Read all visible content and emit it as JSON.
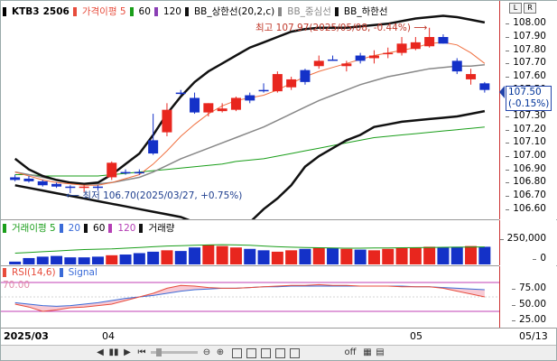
{
  "instrument": {
    "code": "KTB3",
    "period": "2506"
  },
  "legends": {
    "price": [
      {
        "label": "가격이평 5",
        "color": "#e74c3c"
      },
      {
        "label": "60",
        "color": "#1a9e1a"
      },
      {
        "label": "120",
        "color": "#8a3fb5"
      },
      {
        "label": "BB_상한선(20,2,c)",
        "color": "#111111"
      },
      {
        "label": "BB_중심선",
        "color": "#888888"
      },
      {
        "label": "BB_하한선",
        "color": "#111111"
      }
    ],
    "volume": [
      {
        "label": "거래이평 5",
        "color": "#1a9e1a"
      },
      {
        "label": "20",
        "color": "#3a6bd8"
      },
      {
        "label": "60",
        "color": "#111111"
      },
      {
        "label": "120",
        "color": "#b53fb5"
      },
      {
        "label": "거래량",
        "color": "#111111"
      }
    ],
    "rsi": [
      {
        "label": "RSI(14,6)",
        "color": "#e74c3c"
      },
      {
        "label": "Signal",
        "color": "#3a6bd8"
      }
    ]
  },
  "annotations": {
    "high": "최고 107.97(2025/05/08, -0.44%)",
    "low": "최저 106.70(2025/03/27, +0.75%)"
  },
  "axis_labels": {
    "price": [
      "108.00",
      "107.90",
      "107.80",
      "107.70",
      "107.60",
      "107.50",
      "107.40",
      "107.30",
      "107.20",
      "107.10",
      "107.00",
      "106.90",
      "106.80",
      "106.70",
      "106.60"
    ],
    "volume": [
      "250,000",
      "0"
    ],
    "rsi": [
      "75.00",
      "50.00",
      "25.00"
    ]
  },
  "current_price": {
    "value": "107.50",
    "change": "(-0.15%)"
  },
  "rsi_level": "70.00",
  "x_axis": {
    "start": "2025/03",
    "m1": "04",
    "m2": "05",
    "end": "05/13"
  },
  "corner_buttons": [
    "L",
    "R"
  ],
  "toolbar": {
    "nav": [
      "◀",
      "▮▮",
      "▶",
      "⏮"
    ],
    "zoom": [
      "⊖",
      "⊕"
    ],
    "right": [
      "off",
      "▦",
      "▤"
    ]
  },
  "chart_data": {
    "type": "candlestick",
    "candles": [
      {
        "o": 106.84,
        "h": 106.86,
        "l": 106.81,
        "c": 106.82,
        "up": false
      },
      {
        "o": 106.83,
        "h": 106.85,
        "l": 106.8,
        "c": 106.81,
        "up": false
      },
      {
        "o": 106.81,
        "h": 106.82,
        "l": 106.77,
        "c": 106.78,
        "up": false
      },
      {
        "o": 106.79,
        "h": 106.8,
        "l": 106.76,
        "c": 106.77,
        "up": false
      },
      {
        "o": 106.77,
        "h": 106.78,
        "l": 106.72,
        "c": 106.76,
        "up": false
      },
      {
        "o": 106.76,
        "h": 106.78,
        "l": 106.73,
        "c": 106.77,
        "up": true
      },
      {
        "o": 106.77,
        "h": 106.78,
        "l": 106.74,
        "c": 106.76,
        "up": false
      },
      {
        "o": 106.84,
        "h": 106.96,
        "l": 106.82,
        "c": 106.95,
        "up": true
      },
      {
        "o": 106.88,
        "h": 106.9,
        "l": 106.86,
        "c": 106.88,
        "up": false
      },
      {
        "o": 106.88,
        "h": 106.9,
        "l": 106.86,
        "c": 106.87,
        "up": false
      },
      {
        "o": 107.02,
        "h": 107.32,
        "l": 107.01,
        "c": 107.12,
        "up": false
      },
      {
        "o": 107.18,
        "h": 107.4,
        "l": 107.15,
        "c": 107.35,
        "up": true
      },
      {
        "o": 107.48,
        "h": 107.5,
        "l": 107.46,
        "c": 107.48,
        "up": false
      },
      {
        "o": 107.33,
        "h": 107.48,
        "l": 107.32,
        "c": 107.44,
        "up": false
      },
      {
        "o": 107.33,
        "h": 107.4,
        "l": 107.3,
        "c": 107.4,
        "up": true
      },
      {
        "o": 107.34,
        "h": 107.4,
        "l": 107.33,
        "c": 107.36,
        "up": true
      },
      {
        "o": 107.35,
        "h": 107.45,
        "l": 107.34,
        "c": 107.44,
        "up": true
      },
      {
        "o": 107.42,
        "h": 107.48,
        "l": 107.4,
        "c": 107.46,
        "up": false
      },
      {
        "o": 107.5,
        "h": 107.55,
        "l": 107.48,
        "c": 107.5,
        "up": false
      },
      {
        "o": 107.49,
        "h": 107.64,
        "l": 107.48,
        "c": 107.62,
        "up": true
      },
      {
        "o": 107.52,
        "h": 107.6,
        "l": 107.5,
        "c": 107.58,
        "up": true
      },
      {
        "o": 107.56,
        "h": 107.66,
        "l": 107.54,
        "c": 107.65,
        "up": false
      },
      {
        "o": 107.68,
        "h": 107.76,
        "l": 107.66,
        "c": 107.72,
        "up": true
      },
      {
        "o": 107.73,
        "h": 107.76,
        "l": 107.72,
        "c": 107.73,
        "up": false
      },
      {
        "o": 107.68,
        "h": 107.72,
        "l": 107.64,
        "c": 107.7,
        "up": true
      },
      {
        "o": 107.72,
        "h": 107.78,
        "l": 107.7,
        "c": 107.76,
        "up": false
      },
      {
        "o": 107.74,
        "h": 107.8,
        "l": 107.7,
        "c": 107.76,
        "up": true
      },
      {
        "o": 107.77,
        "h": 107.82,
        "l": 107.74,
        "c": 107.78,
        "up": true
      },
      {
        "o": 107.78,
        "h": 107.9,
        "l": 107.76,
        "c": 107.85,
        "up": true
      },
      {
        "o": 107.86,
        "h": 107.9,
        "l": 107.8,
        "c": 107.81,
        "up": true
      },
      {
        "o": 107.83,
        "h": 107.97,
        "l": 107.82,
        "c": 107.9,
        "up": true
      },
      {
        "o": 107.9,
        "h": 107.92,
        "l": 107.85,
        "c": 107.85,
        "up": false
      },
      {
        "o": 107.72,
        "h": 107.74,
        "l": 107.62,
        "c": 107.64,
        "up": false
      },
      {
        "o": 107.62,
        "h": 107.66,
        "l": 107.54,
        "c": 107.58,
        "up": true
      },
      {
        "o": 107.55,
        "h": 107.56,
        "l": 107.48,
        "c": 107.5,
        "up": false
      }
    ],
    "bb_upper": [
      106.98,
      106.9,
      106.85,
      106.82,
      106.8,
      106.79,
      106.8,
      106.86,
      106.94,
      107.02,
      107.16,
      107.32,
      107.45,
      107.56,
      107.64,
      107.7,
      107.76,
      107.82,
      107.86,
      107.9,
      107.94,
      107.96,
      107.97,
      107.97,
      107.97,
      107.98,
      107.99,
      108.0,
      108.02,
      108.04,
      108.05,
      108.06,
      108.05,
      108.03,
      108.01
    ],
    "bb_middle": [
      106.88,
      106.86,
      106.84,
      106.82,
      106.8,
      106.79,
      106.79,
      106.8,
      106.82,
      106.84,
      106.88,
      106.93,
      106.98,
      107.02,
      107.06,
      107.1,
      107.14,
      107.18,
      107.22,
      107.27,
      107.32,
      107.37,
      107.42,
      107.46,
      107.5,
      107.54,
      107.57,
      107.6,
      107.62,
      107.64,
      107.66,
      107.67,
      107.68,
      107.68,
      107.69
    ],
    "bb_lower": [
      106.78,
      106.76,
      106.74,
      106.72,
      106.7,
      106.68,
      106.66,
      106.64,
      106.62,
      106.6,
      106.58,
      106.56,
      106.54,
      106.5,
      106.46,
      106.45,
      106.46,
      106.5,
      106.6,
      106.68,
      106.78,
      106.92,
      107.0,
      107.06,
      107.12,
      107.16,
      107.22,
      107.24,
      107.26,
      107.27,
      107.28,
      107.29,
      107.3,
      107.32,
      107.34
    ],
    "ma5": [
      106.88,
      106.85,
      106.82,
      106.8,
      106.79,
      106.78,
      106.78,
      106.8,
      106.83,
      106.86,
      106.94,
      107.04,
      107.15,
      107.24,
      107.32,
      107.38,
      107.42,
      107.44,
      107.46,
      107.5,
      107.55,
      107.6,
      107.64,
      107.67,
      107.7,
      107.73,
      107.76,
      107.78,
      107.8,
      107.82,
      107.85,
      107.86,
      107.84,
      107.78,
      107.7
    ],
    "ma60": [
      106.86,
      106.86,
      106.85,
      106.85,
      106.85,
      106.85,
      106.85,
      106.86,
      106.87,
      106.88,
      106.89,
      106.9,
      106.91,
      106.92,
      106.93,
      106.94,
      106.96,
      106.97,
      106.98,
      107.0,
      107.02,
      107.04,
      107.06,
      107.08,
      107.1,
      107.12,
      107.14,
      107.15,
      107.16,
      107.17,
      107.18,
      107.19,
      107.2,
      107.21,
      107.22
    ],
    "volume": [
      20000,
      45000,
      55000,
      60000,
      50000,
      50000,
      55000,
      65000,
      70000,
      80000,
      90000,
      100000,
      95000,
      120000,
      140000,
      130000,
      120000,
      110000,
      100000,
      90000,
      100000,
      110000,
      120000,
      115000,
      110000,
      105000,
      100000,
      110000,
      115000,
      120000,
      125000,
      120000,
      125000,
      130000,
      125000
    ],
    "volume_up": [
      false,
      false,
      false,
      false,
      false,
      false,
      false,
      true,
      false,
      false,
      false,
      true,
      false,
      false,
      true,
      true,
      true,
      false,
      false,
      true,
      true,
      false,
      true,
      false,
      true,
      false,
      true,
      true,
      true,
      true,
      true,
      false,
      false,
      true,
      false
    ],
    "vol_ma5": [
      80000,
      85000,
      90000,
      95000,
      100000,
      105000,
      108000,
      110000,
      115000,
      120000,
      125000,
      130000,
      132000,
      135000,
      138000,
      140000,
      138000,
      135000,
      130000,
      125000,
      122000,
      120000,
      118000,
      116000,
      115000,
      115000,
      116000,
      117000,
      118000,
      119000,
      120000,
      121000,
      122000,
      123000,
      124000
    ],
    "rsi": [
      40,
      36,
      30,
      32,
      35,
      36,
      38,
      40,
      45,
      50,
      55,
      62,
      66,
      65,
      63,
      62,
      62,
      63,
      64,
      65,
      66,
      66,
      67,
      66,
      66,
      65,
      65,
      65,
      64,
      64,
      64,
      62,
      58,
      54,
      50
    ],
    "signal": [
      42,
      40,
      38,
      37,
      38,
      40,
      42,
      45,
      48,
      50,
      52,
      55,
      58,
      60,
      61,
      62,
      62,
      63,
      64,
      64,
      65,
      65,
      65,
      65,
      65,
      65,
      65,
      65,
      65,
      64,
      64,
      63,
      62,
      61,
      60
    ],
    "ylim": [
      106.55,
      108.05
    ],
    "vol_ylim": [
      0,
      300000
    ],
    "rsi_ylim": [
      10,
      90
    ]
  }
}
